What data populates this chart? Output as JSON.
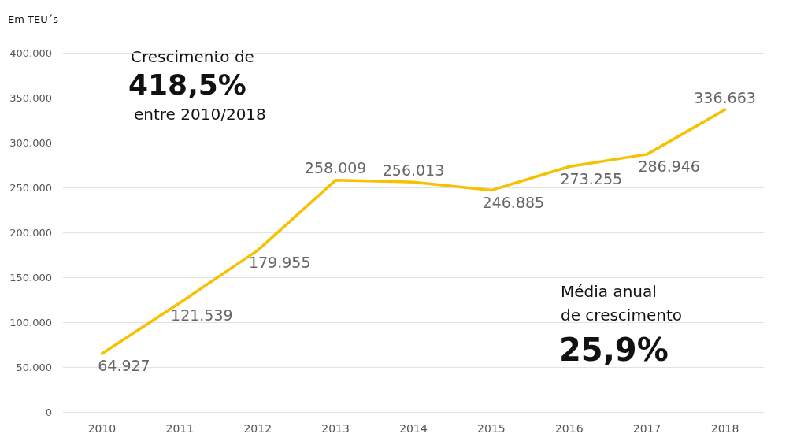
{
  "chart_data": {
    "type": "line",
    "ylabel": "Em TEU´s",
    "categories": [
      "2010",
      "2011",
      "2012",
      "2013",
      "2014",
      "2015",
      "2016",
      "2017",
      "2018"
    ],
    "series": [
      {
        "color": "#f7c000",
        "values": [
          64927,
          121539,
          179955,
          258009,
          256013,
          246885,
          273255,
          286946,
          336663
        ],
        "value_labels": [
          "64.927",
          "121.539",
          "179.955",
          "258.009",
          "256.013",
          "246.885",
          "273.255",
          "286.946",
          "336.663"
        ]
      }
    ],
    "ylim": [
      0,
      400000
    ],
    "yticks": [
      0,
      {
        "value": 50000,
        "label": "50.000"
      },
      {
        "value": 100000,
        "label": "100.000"
      },
      {
        "value": 150000,
        "label": "150.000"
      },
      {
        "value": 200000,
        "label": "200.000"
      },
      {
        "value": 250000,
        "label": "250.000"
      },
      {
        "value": 300000,
        "label": "300.000"
      },
      {
        "value": 350000,
        "label": "350.000"
      },
      {
        "value": 400000,
        "label": "400.000"
      }
    ],
    "grid": "y",
    "marker": "none",
    "line_style": "solid",
    "annotations": [
      "Crescimento de",
      "418,5%",
      "entre 2010/2018",
      "Média anual\nde crescimento",
      "25,9%"
    ]
  }
}
